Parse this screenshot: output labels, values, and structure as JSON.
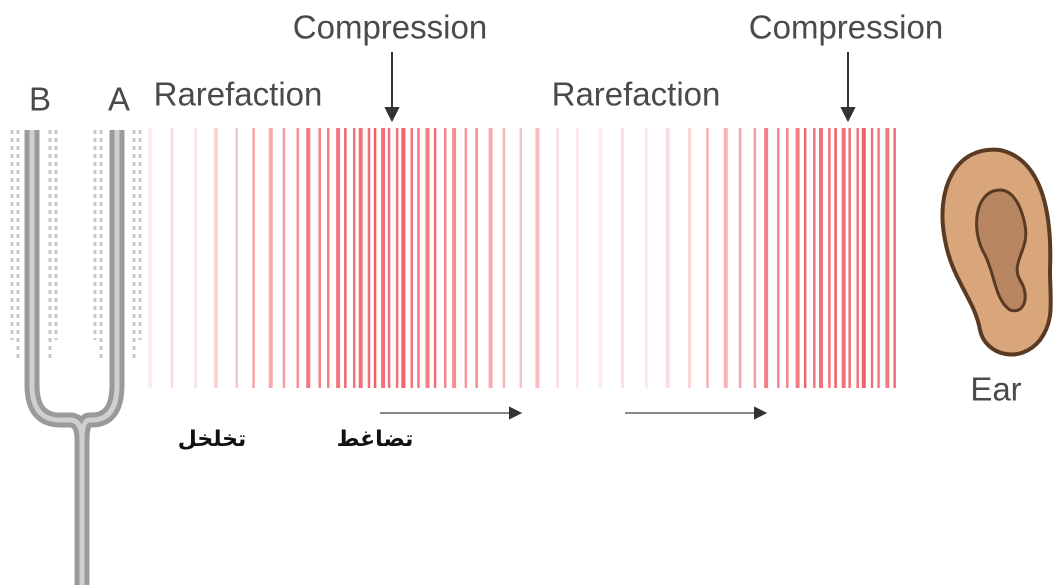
{
  "labels": {
    "compression_1": "Compression",
    "compression_2": "Compression",
    "rarefaction_1": "Rarefaction",
    "rarefaction_2": "Rarefaction",
    "prong_b": "B",
    "prong_a": "A",
    "ear": "Ear",
    "arabic_rarefaction": "تخلخل",
    "arabic_compression": "تضاغط"
  }
}
